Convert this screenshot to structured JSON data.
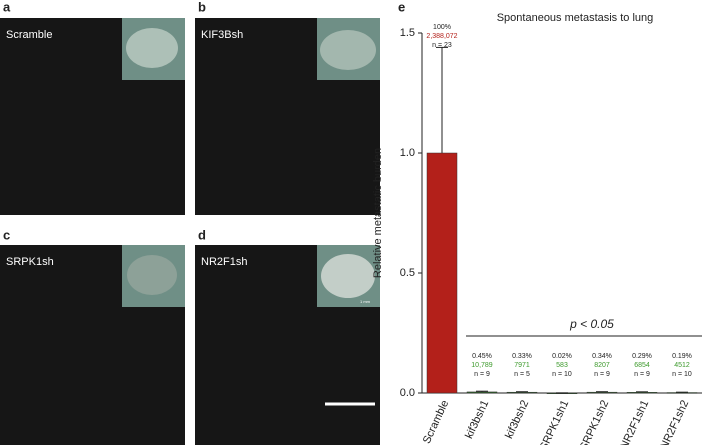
{
  "panels": [
    {
      "letter": "a",
      "label": "Scramble"
    },
    {
      "letter": "b",
      "label": "KIF3Bsh"
    },
    {
      "letter": "c",
      "label": "SRPK1sh"
    },
    {
      "letter": "d",
      "label": "NR2F1sh",
      "inset_scale": "1 mm"
    }
  ],
  "chart_data": {
    "type": "bar",
    "letter": "e",
    "title": "Spontaneous metastasis to lung",
    "y_label": "Relative metastatic burden",
    "categories": [
      "Scramble",
      "kif3bsh1",
      "kif3bsh2",
      "SRPK1sh1",
      "SRPK1sh2",
      "NR2F1sh1",
      "NR2F1sh2"
    ],
    "values": [
      1,
      0.0045,
      0.0033,
      0.0002,
      0.0034,
      0.0029,
      0.0019
    ],
    "errors": [
      0.44,
      0.003,
      0.002,
      0.0005,
      0.002,
      0.002,
      0.0015
    ],
    "value_labels": [
      "100%",
      "0.45%",
      "0.33%",
      "0.02%",
      "0.34%",
      "0.29%",
      "0.19%"
    ],
    "counts": [
      "2,388,072",
      "10,789",
      "7971",
      "583",
      "8207",
      "6854",
      "4512"
    ],
    "n_labels": [
      "n = 23",
      "n = 9",
      "n = 5",
      "n = 10",
      "n = 9",
      "n = 9",
      "n = 10"
    ],
    "colors": [
      "#b3201a",
      "#2e6b2a",
      "#2e6b2a",
      "#2e6b2a",
      "#2e6b2a",
      "#2e6b2a",
      "#2e6b2a"
    ],
    "count_colors": [
      "#b3201a",
      "#3d9a2c",
      "#3d9a2c",
      "#3d9a2c",
      "#3d9a2c",
      "#3d9a2c",
      "#3d9a2c"
    ],
    "annotation": "p < 0.05",
    "ylim": [
      0,
      1.5
    ],
    "yticks": [
      {
        "value": 0,
        "label": "0.0"
      },
      {
        "value": 0.5,
        "label": "0.5"
      },
      {
        "value": 1,
        "label": "1.0"
      },
      {
        "value": 1.5,
        "label": "1.5"
      }
    ]
  }
}
